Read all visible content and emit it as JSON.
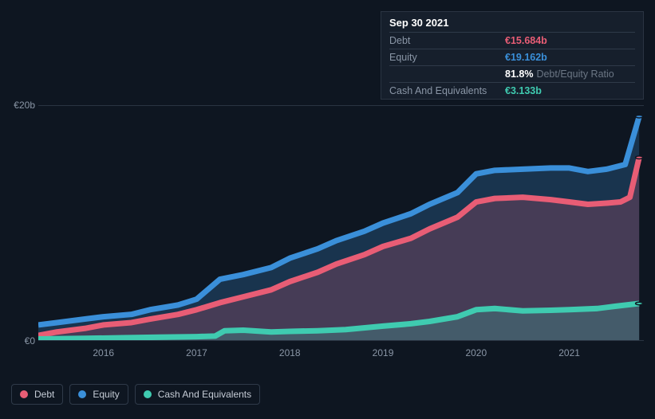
{
  "tooltip": {
    "date": "Sep 30 2021",
    "rows": [
      {
        "label": "Debt",
        "value": "€15.684b",
        "color": "#e85d75"
      },
      {
        "label": "Equity",
        "value": "€19.162b",
        "color": "#3a8fd9"
      },
      {
        "label": "",
        "value": "81.8%",
        "suffix": "Debt/Equity Ratio",
        "color": "#ffffff"
      },
      {
        "label": "Cash And Equivalents",
        "value": "€3.133b",
        "color": "#3fcbb0"
      }
    ]
  },
  "chart": {
    "type": "area",
    "background_color": "#0e1621",
    "grid_color": "#2a3442",
    "text_color": "#8a96a6",
    "yaxis": {
      "min": 0,
      "max": 20,
      "ticks": [
        {
          "v": 0,
          "label": "€0"
        },
        {
          "v": 20,
          "label": "€20b"
        }
      ]
    },
    "xaxis": {
      "min": 2015.3,
      "max": 2021.8,
      "ticks": [
        2016,
        2017,
        2018,
        2019,
        2020,
        2021
      ]
    },
    "series": [
      {
        "name": "Equity",
        "color": "#3a8fd9",
        "fill": "rgba(58,143,217,0.25)",
        "line_width": 2.2,
        "data": [
          [
            2015.3,
            1.3
          ],
          [
            2015.5,
            1.5
          ],
          [
            2015.8,
            1.8
          ],
          [
            2016.0,
            2.0
          ],
          [
            2016.3,
            2.2
          ],
          [
            2016.5,
            2.6
          ],
          [
            2016.8,
            3.0
          ],
          [
            2017.0,
            3.5
          ],
          [
            2017.25,
            5.2
          ],
          [
            2017.5,
            5.6
          ],
          [
            2017.8,
            6.2
          ],
          [
            2018.0,
            7.0
          ],
          [
            2018.3,
            7.8
          ],
          [
            2018.5,
            8.5
          ],
          [
            2018.8,
            9.3
          ],
          [
            2019.0,
            10.0
          ],
          [
            2019.3,
            10.8
          ],
          [
            2019.5,
            11.6
          ],
          [
            2019.8,
            12.6
          ],
          [
            2020.0,
            14.2
          ],
          [
            2020.2,
            14.5
          ],
          [
            2020.5,
            14.6
          ],
          [
            2020.8,
            14.7
          ],
          [
            2021.0,
            14.7
          ],
          [
            2021.2,
            14.4
          ],
          [
            2021.4,
            14.6
          ],
          [
            2021.6,
            15.0
          ],
          [
            2021.75,
            19.1
          ]
        ]
      },
      {
        "name": "Debt",
        "color": "#e85d75",
        "fill": "rgba(232,93,117,0.22)",
        "line_width": 2.2,
        "data": [
          [
            2015.3,
            0.4
          ],
          [
            2015.5,
            0.7
          ],
          [
            2015.8,
            1.0
          ],
          [
            2016.0,
            1.3
          ],
          [
            2016.3,
            1.5
          ],
          [
            2016.5,
            1.8
          ],
          [
            2016.8,
            2.2
          ],
          [
            2017.0,
            2.6
          ],
          [
            2017.25,
            3.2
          ],
          [
            2017.5,
            3.7
          ],
          [
            2017.8,
            4.3
          ],
          [
            2018.0,
            5.0
          ],
          [
            2018.3,
            5.8
          ],
          [
            2018.5,
            6.5
          ],
          [
            2018.8,
            7.3
          ],
          [
            2019.0,
            8.0
          ],
          [
            2019.3,
            8.7
          ],
          [
            2019.5,
            9.5
          ],
          [
            2019.8,
            10.5
          ],
          [
            2020.0,
            11.8
          ],
          [
            2020.2,
            12.1
          ],
          [
            2020.5,
            12.2
          ],
          [
            2020.8,
            12.0
          ],
          [
            2021.0,
            11.8
          ],
          [
            2021.2,
            11.6
          ],
          [
            2021.4,
            11.7
          ],
          [
            2021.55,
            11.8
          ],
          [
            2021.65,
            12.2
          ],
          [
            2021.75,
            15.6
          ]
        ]
      },
      {
        "name": "Cash And Equivalents",
        "color": "#3fcbb0",
        "fill": "rgba(63,203,176,0.22)",
        "line_width": 2.2,
        "data": [
          [
            2015.3,
            0.1
          ],
          [
            2015.8,
            0.15
          ],
          [
            2016.2,
            0.2
          ],
          [
            2016.6,
            0.25
          ],
          [
            2017.0,
            0.3
          ],
          [
            2017.2,
            0.35
          ],
          [
            2017.3,
            0.8
          ],
          [
            2017.5,
            0.85
          ],
          [
            2017.8,
            0.7
          ],
          [
            2018.0,
            0.75
          ],
          [
            2018.3,
            0.8
          ],
          [
            2018.6,
            0.9
          ],
          [
            2019.0,
            1.2
          ],
          [
            2019.3,
            1.4
          ],
          [
            2019.5,
            1.6
          ],
          [
            2019.8,
            2.0
          ],
          [
            2020.0,
            2.6
          ],
          [
            2020.2,
            2.7
          ],
          [
            2020.5,
            2.5
          ],
          [
            2020.8,
            2.55
          ],
          [
            2021.0,
            2.6
          ],
          [
            2021.3,
            2.7
          ],
          [
            2021.5,
            2.9
          ],
          [
            2021.75,
            3.13
          ]
        ]
      }
    ],
    "legend": [
      {
        "label": "Debt",
        "color": "#e85d75"
      },
      {
        "label": "Equity",
        "color": "#3a8fd9"
      },
      {
        "label": "Cash And Equivalents",
        "color": "#3fcbb0"
      }
    ]
  }
}
